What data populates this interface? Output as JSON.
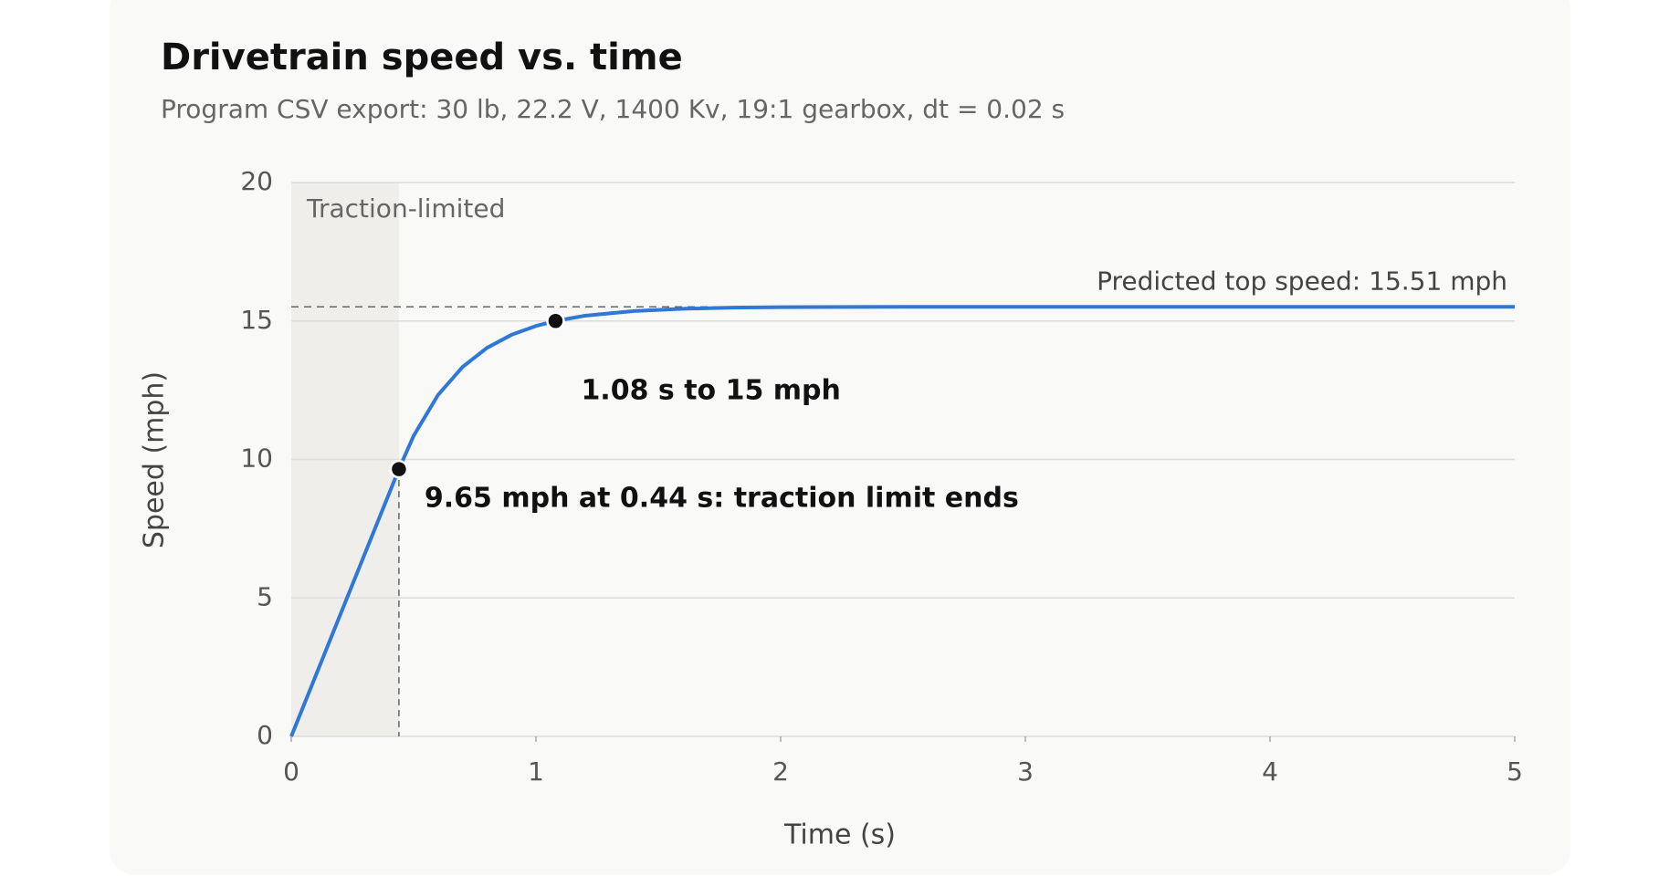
{
  "chart_data": {
    "type": "line",
    "title": "Drivetrain speed vs. time",
    "subtitle": "Program CSV export: 30 lb, 22.2 V, 1400 Kv, 19:1 gearbox, dt = 0.02 s",
    "x_label": "Time (s)",
    "y_label": "Speed (mph)",
    "x": [
      0,
      0.44,
      0.5,
      0.6,
      0.7,
      0.8,
      0.9,
      1.0,
      1.08,
      1.2,
      1.4,
      1.6,
      1.8,
      2.0,
      2.5,
      3,
      4,
      5
    ],
    "values": [
      0,
      9.65,
      10.85,
      12.33,
      13.34,
      14.03,
      14.5,
      14.82,
      15,
      15.19,
      15.36,
      15.44,
      15.48,
      15.5,
      15.51,
      15.51,
      15.51,
      15.51
    ],
    "color": "#2f78d6",
    "xlim": [
      0,
      5
    ],
    "ylim": [
      0,
      20
    ],
    "xticks": [
      0,
      1,
      2,
      3,
      4,
      5
    ],
    "yticks": [
      0,
      5,
      10,
      15,
      20
    ],
    "grid": true,
    "region": {
      "x": [
        0,
        0.44
      ],
      "label": "Traction-limited"
    },
    "reference_line": {
      "value": 15.51,
      "label": "Predicted top speed: 15.51 mph"
    },
    "annotations": [
      {
        "x": 0.44,
        "y": 9.65,
        "label": "9.65 mph at 0.44 s: traction limit ends"
      },
      {
        "x": 1.08,
        "y": 15,
        "label": "1.08 s to 15 mph"
      }
    ]
  }
}
